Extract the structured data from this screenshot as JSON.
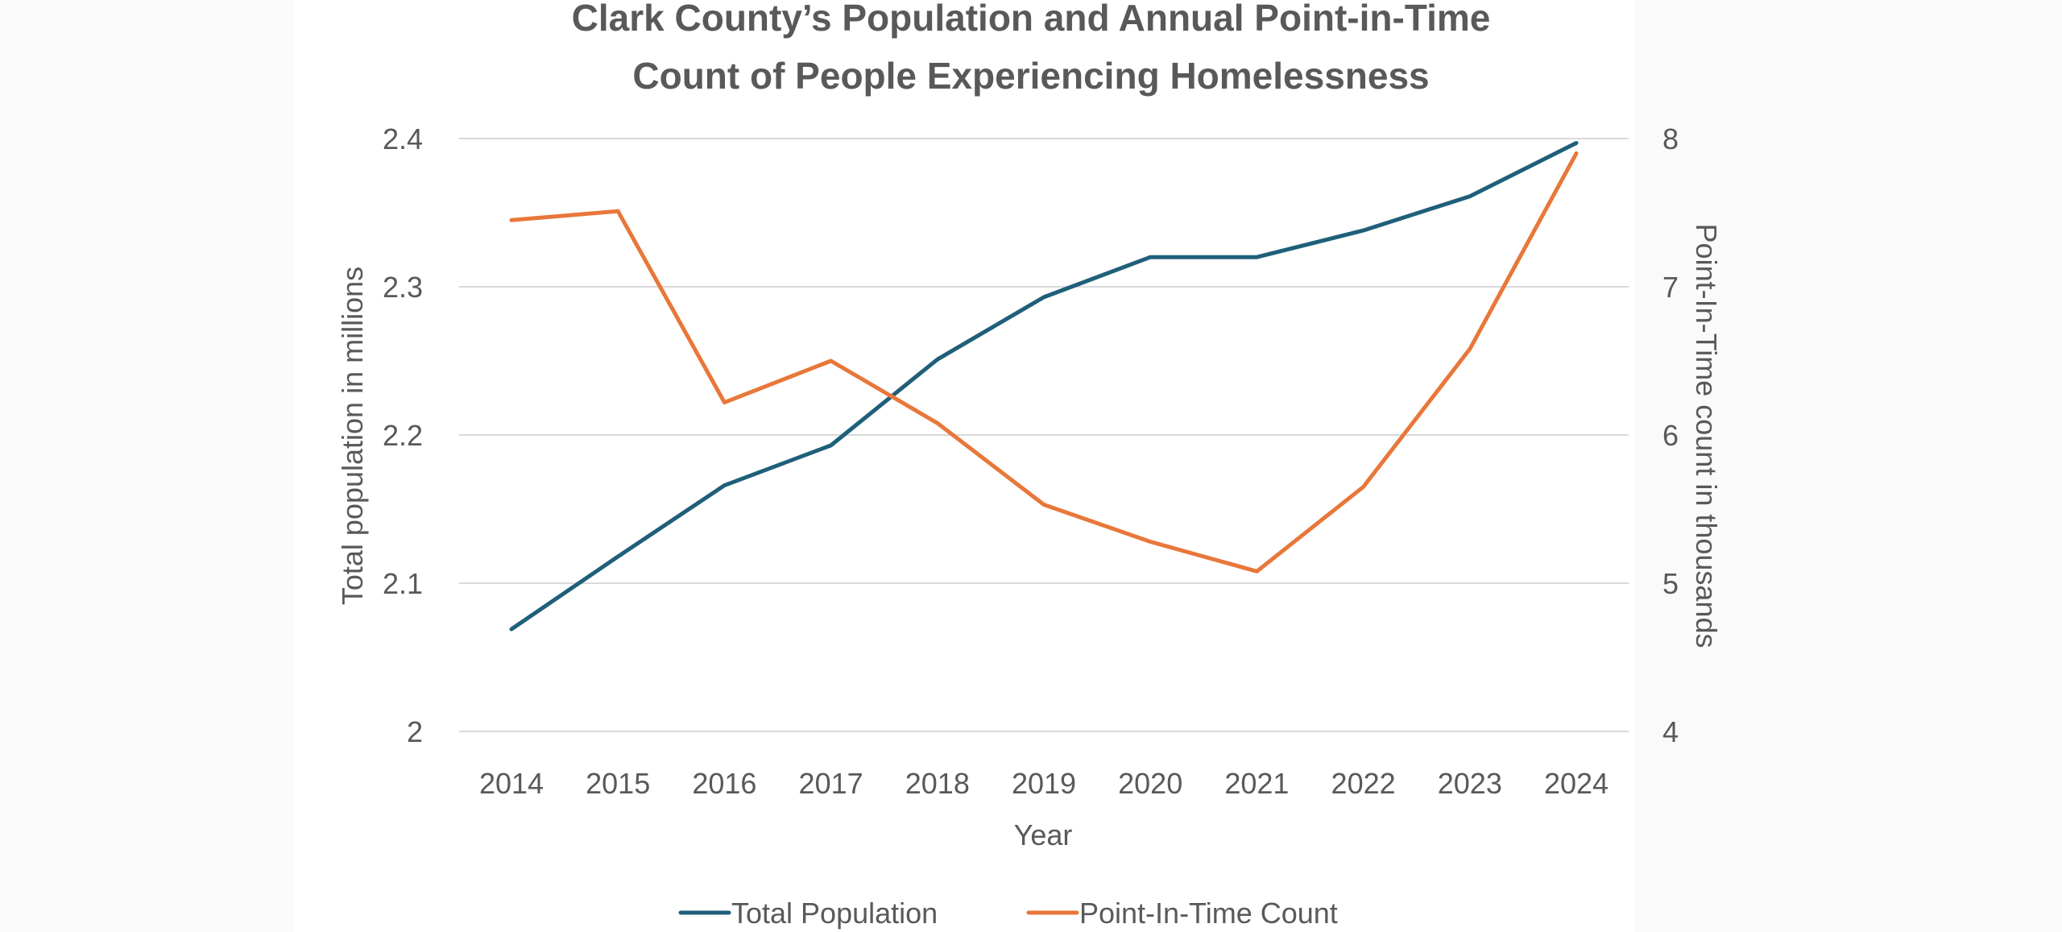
{
  "chart_data": {
    "type": "line",
    "title": "Clark County’s Population and Annual Point-in-Time Count of People Experiencing Homelessness",
    "title_lines": [
      "Clark County’s Population and Annual Point-in-Time",
      "Count of People Experiencing Homelessness"
    ],
    "xlabel": "Year",
    "ylabel_left": "Total population in millions",
    "ylabel_right": "Point-In-Time count in thousands",
    "categories": [
      "2014",
      "2015",
      "2016",
      "2017",
      "2018",
      "2019",
      "2020",
      "2021",
      "2022",
      "2023",
      "2024"
    ],
    "y_left": {
      "min": 2,
      "max": 2.4,
      "ticks": [
        "2",
        "2.1",
        "2.2",
        "2.3",
        "2.4"
      ]
    },
    "y_right": {
      "min": 4,
      "max": 8,
      "ticks": [
        "4",
        "5",
        "6",
        "7",
        "8"
      ]
    },
    "grid": true,
    "legend_position": "bottom",
    "series": [
      {
        "name": "Total Population",
        "axis": "left",
        "color": "#1f5f7a",
        "values": [
          2.069,
          2.118,
          2.166,
          2.193,
          2.251,
          2.293,
          2.32,
          2.32,
          2.338,
          2.361,
          2.397
        ]
      },
      {
        "name": "Point-In-Time Count",
        "axis": "right",
        "color": "#e8773a",
        "values": [
          7.45,
          7.51,
          6.22,
          6.5,
          6.08,
          5.53,
          5.28,
          5.08,
          5.65,
          6.58,
          7.9
        ]
      }
    ]
  }
}
